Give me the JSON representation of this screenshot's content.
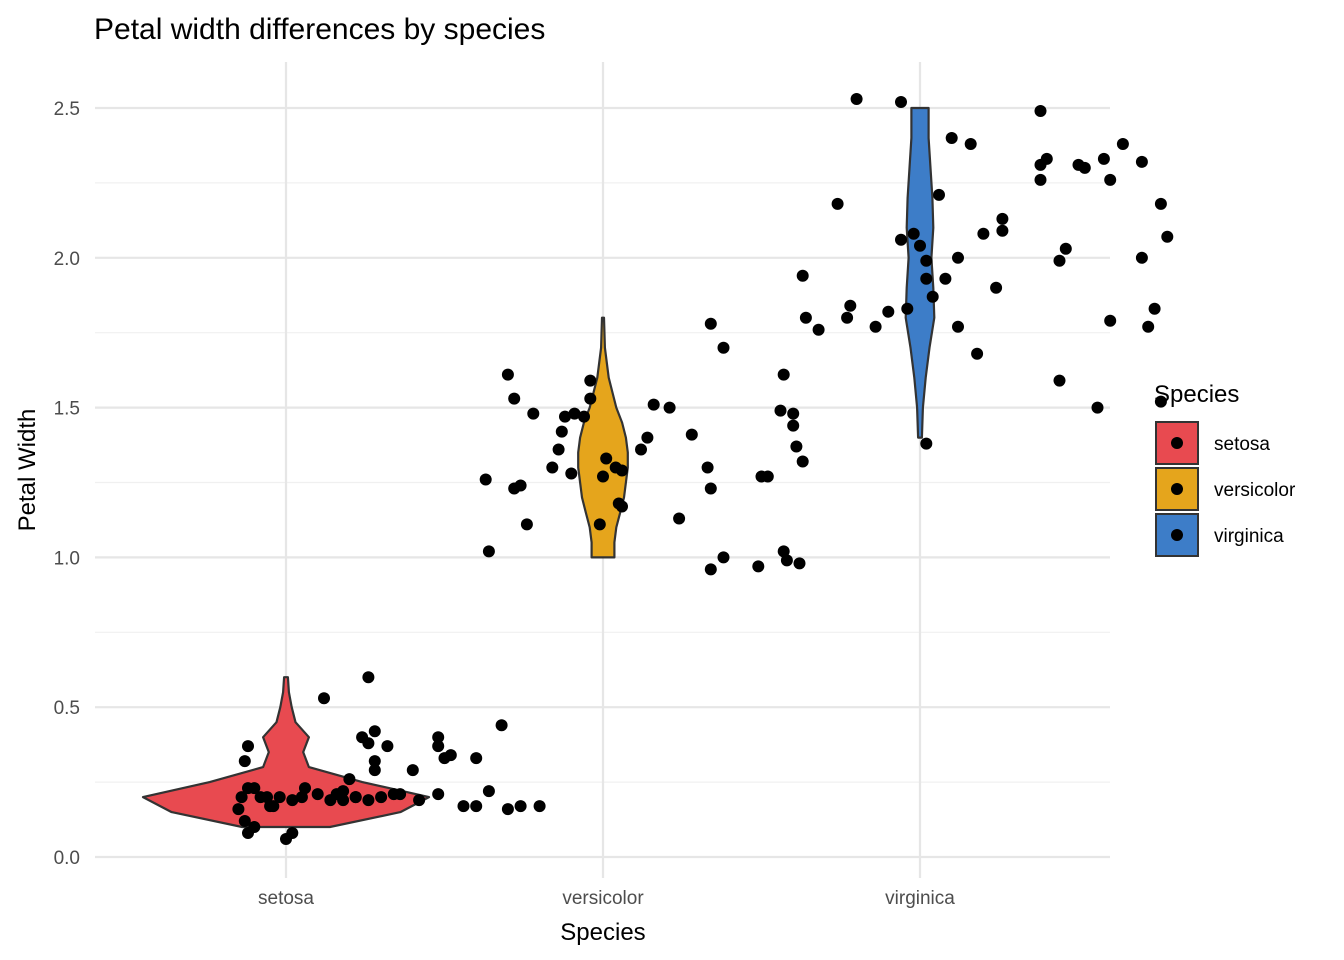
{
  "chart_data": {
    "type": "violin",
    "title": "Petal width differences by species",
    "xlabel": "Species",
    "ylabel": "Petal Width",
    "ylim": [
      -0.02,
      2.6
    ],
    "yticks": [
      0.0,
      0.5,
      1.0,
      1.5,
      2.0,
      2.5
    ],
    "ytick_labels": [
      "0.0",
      "0.5",
      "1.0",
      "1.5",
      "2.0",
      "2.5"
    ],
    "grid": true,
    "legend": {
      "title": "Species",
      "position": "right",
      "items": [
        "setosa",
        "versicolor",
        "virginica"
      ]
    },
    "categories": [
      "setosa",
      "versicolor",
      "virginica"
    ],
    "colors": {
      "setosa": "#E84A50",
      "versicolor": "#E5A51C",
      "virginica": "#3D7DC8"
    },
    "violins": [
      {
        "species": "setosa",
        "min": 0.1,
        "max": 0.6,
        "density": [
          [
            0.1,
            0.23
          ],
          [
            0.15,
            0.6
          ],
          [
            0.2,
            0.75
          ],
          [
            0.25,
            0.4
          ],
          [
            0.3,
            0.12
          ],
          [
            0.35,
            0.09
          ],
          [
            0.4,
            0.12
          ],
          [
            0.45,
            0.05
          ],
          [
            0.5,
            0.03
          ],
          [
            0.55,
            0.015
          ],
          [
            0.6,
            0.01
          ]
        ]
      },
      {
        "species": "versicolor",
        "min": 1.0,
        "max": 1.8,
        "density": [
          [
            1.0,
            0.06
          ],
          [
            1.05,
            0.06
          ],
          [
            1.1,
            0.07
          ],
          [
            1.15,
            0.09
          ],
          [
            1.2,
            0.11
          ],
          [
            1.25,
            0.12
          ],
          [
            1.3,
            0.13
          ],
          [
            1.35,
            0.13
          ],
          [
            1.4,
            0.12
          ],
          [
            1.45,
            0.1
          ],
          [
            1.5,
            0.07
          ],
          [
            1.55,
            0.05
          ],
          [
            1.6,
            0.03
          ],
          [
            1.65,
            0.02
          ],
          [
            1.7,
            0.01
          ],
          [
            1.8,
            0.005
          ]
        ]
      },
      {
        "species": "virginica",
        "min": 1.4,
        "max": 2.5,
        "density": [
          [
            1.4,
            0.01
          ],
          [
            1.5,
            0.015
          ],
          [
            1.6,
            0.03
          ],
          [
            1.7,
            0.05
          ],
          [
            1.8,
            0.075
          ],
          [
            1.9,
            0.07
          ],
          [
            2.0,
            0.06
          ],
          [
            2.1,
            0.07
          ],
          [
            2.2,
            0.065
          ],
          [
            2.3,
            0.055
          ],
          [
            2.4,
            0.045
          ],
          [
            2.5,
            0.045
          ]
        ]
      }
    ],
    "points": {
      "setosa": [
        [
          0.92,
          0.2
        ],
        [
          0.94,
          0.2
        ],
        [
          0.96,
          0.17
        ],
        [
          0.98,
          0.2
        ],
        [
          0.9,
          0.23
        ],
        [
          1.02,
          0.19
        ],
        [
          1.06,
          0.23
        ],
        [
          1.1,
          0.21
        ],
        [
          1.14,
          0.19
        ],
        [
          1.18,
          0.22
        ],
        [
          1.22,
          0.2
        ],
        [
          1.26,
          0.19
        ],
        [
          0.88,
          0.23
        ],
        [
          0.86,
          0.2
        ],
        [
          0.85,
          0.16
        ],
        [
          0.87,
          0.12
        ],
        [
          0.88,
          0.08
        ],
        [
          0.9,
          0.1
        ],
        [
          0.95,
          0.17
        ],
        [
          1.0,
          0.06
        ],
        [
          1.02,
          0.08
        ],
        [
          1.05,
          0.2
        ],
        [
          1.12,
          0.53
        ],
        [
          1.18,
          0.19
        ],
        [
          1.2,
          0.26
        ],
        [
          1.24,
          0.4
        ],
        [
          1.26,
          0.6
        ],
        [
          1.28,
          0.42
        ],
        [
          1.26,
          0.38
        ],
        [
          1.28,
          0.32
        ],
        [
          1.28,
          0.29
        ],
        [
          1.3,
          0.2
        ],
        [
          1.32,
          0.37
        ],
        [
          1.34,
          0.21
        ],
        [
          1.36,
          0.21
        ],
        [
          1.4,
          0.29
        ],
        [
          1.42,
          0.19
        ],
        [
          1.48,
          0.4
        ],
        [
          1.48,
          0.37
        ],
        [
          1.5,
          0.33
        ],
        [
          1.52,
          0.34
        ],
        [
          1.56,
          0.17
        ],
        [
          1.6,
          0.33
        ],
        [
          1.6,
          0.17
        ],
        [
          1.64,
          0.22
        ],
        [
          1.68,
          0.44
        ],
        [
          1.7,
          0.16
        ],
        [
          1.74,
          0.17
        ],
        [
          1.8,
          0.17
        ],
        [
          0.88,
          0.37
        ],
        [
          0.87,
          0.32
        ],
        [
          1.22,
          0.2
        ],
        [
          1.16,
          0.21
        ],
        [
          1.48,
          0.21
        ]
      ],
      "versicolor": [
        [
          1.63,
          1.26
        ],
        [
          1.64,
          1.02
        ],
        [
          1.7,
          1.61
        ],
        [
          1.72,
          1.53
        ],
        [
          1.72,
          1.23
        ],
        [
          1.74,
          1.24
        ],
        [
          1.76,
          1.11
        ],
        [
          1.78,
          1.48
        ],
        [
          1.84,
          1.3
        ],
        [
          1.86,
          1.36
        ],
        [
          1.87,
          1.42
        ],
        [
          1.88,
          1.47
        ],
        [
          1.9,
          1.28
        ],
        [
          1.91,
          1.48
        ],
        [
          1.94,
          1.47
        ],
        [
          1.96,
          1.53
        ],
        [
          1.96,
          1.59
        ],
        [
          1.99,
          1.11
        ],
        [
          2.0,
          1.27
        ],
        [
          2.01,
          1.33
        ],
        [
          2.04,
          1.3
        ],
        [
          2.05,
          1.18
        ],
        [
          2.06,
          1.29
        ],
        [
          2.06,
          1.17
        ],
        [
          2.12,
          1.36
        ],
        [
          2.14,
          1.4
        ],
        [
          2.16,
          1.51
        ],
        [
          2.21,
          1.5
        ],
        [
          2.24,
          1.13
        ],
        [
          2.28,
          1.41
        ],
        [
          2.33,
          1.3
        ],
        [
          2.34,
          1.78
        ],
        [
          2.34,
          1.23
        ],
        [
          2.34,
          0.96
        ],
        [
          2.38,
          1.7
        ],
        [
          2.38,
          1.0
        ],
        [
          2.49,
          0.97
        ],
        [
          2.5,
          1.27
        ],
        [
          2.52,
          1.27
        ],
        [
          2.56,
          1.49
        ],
        [
          2.57,
          1.61
        ],
        [
          2.57,
          1.02
        ],
        [
          2.58,
          0.99
        ],
        [
          2.6,
          1.48
        ],
        [
          2.6,
          1.44
        ],
        [
          2.61,
          1.37
        ],
        [
          2.62,
          0.98
        ],
        [
          2.63,
          1.32
        ]
      ],
      "virginica": [
        [
          2.63,
          1.94
        ],
        [
          2.64,
          1.8
        ],
        [
          2.68,
          1.76
        ],
        [
          2.74,
          2.18
        ],
        [
          2.77,
          1.8
        ],
        [
          2.78,
          1.84
        ],
        [
          2.8,
          2.53
        ],
        [
          2.86,
          1.77
        ],
        [
          2.9,
          1.82
        ],
        [
          2.94,
          2.06
        ],
        [
          2.94,
          2.52
        ],
        [
          2.96,
          1.83
        ],
        [
          2.98,
          2.08
        ],
        [
          3.0,
          2.04
        ],
        [
          3.02,
          1.99
        ],
        [
          3.02,
          1.93
        ],
        [
          3.04,
          1.87
        ],
        [
          3.06,
          2.21
        ],
        [
          3.08,
          1.93
        ],
        [
          3.1,
          2.4
        ],
        [
          3.12,
          1.77
        ],
        [
          3.12,
          2.0
        ],
        [
          3.16,
          2.38
        ],
        [
          3.18,
          1.68
        ],
        [
          3.2,
          2.08
        ],
        [
          3.24,
          1.9
        ],
        [
          3.26,
          2.09
        ],
        [
          3.26,
          2.13
        ],
        [
          3.38,
          2.49
        ],
        [
          3.38,
          2.31
        ],
        [
          3.4,
          2.33
        ],
        [
          3.38,
          2.26
        ],
        [
          3.44,
          1.99
        ],
        [
          3.44,
          1.59
        ],
        [
          3.46,
          2.03
        ],
        [
          3.5,
          2.31
        ],
        [
          3.52,
          2.3
        ],
        [
          3.56,
          1.5
        ],
        [
          3.58,
          2.33
        ],
        [
          3.6,
          2.26
        ],
        [
          3.6,
          1.79
        ],
        [
          3.64,
          2.38
        ],
        [
          3.7,
          2.32
        ],
        [
          3.7,
          2.0
        ],
        [
          3.72,
          1.77
        ],
        [
          3.74,
          1.83
        ],
        [
          3.76,
          1.52
        ],
        [
          3.76,
          2.18
        ],
        [
          3.78,
          2.07
        ],
        [
          3.02,
          1.38
        ]
      ]
    }
  }
}
